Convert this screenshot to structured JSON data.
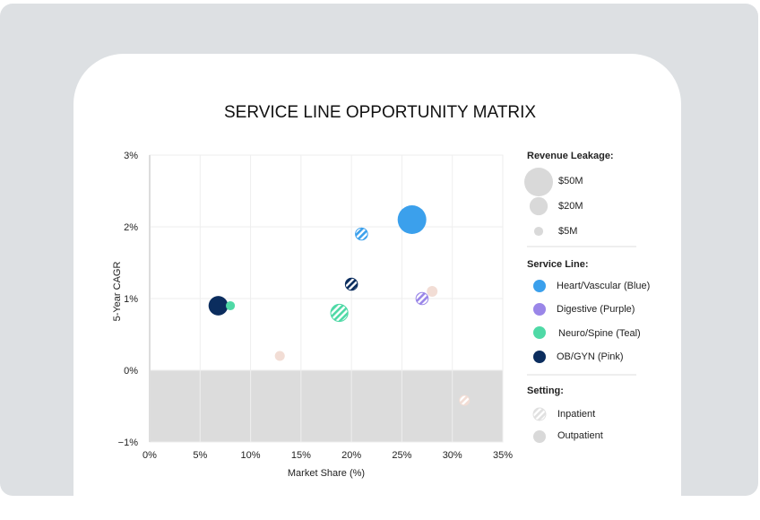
{
  "chart_data": {
    "type": "scatter",
    "title": "SERVICE LINE OPPORTUNITY MATRIX",
    "xlabel": "Market Share (%)",
    "ylabel": "5-Year CAGR",
    "xlim": [
      0,
      35
    ],
    "ylim": [
      -1,
      3
    ],
    "x_ticks": [
      "0%",
      "5%",
      "10%",
      "15%",
      "20%",
      "25%",
      "30%",
      "35%"
    ],
    "y_ticks": [
      "3%",
      "2%",
      "1%",
      "0%",
      "−1%"
    ],
    "grid": true,
    "negative_region_shaded": true,
    "points": [
      {
        "service_line": "Heart/Vascular",
        "setting": "Outpatient",
        "x": 26,
        "y": 2.1,
        "leakage_m": 50
      },
      {
        "service_line": "Heart/Vascular",
        "setting": "Inpatient",
        "x": 21,
        "y": 1.9,
        "leakage_m": 9
      },
      {
        "service_line": "OB/GYN",
        "setting": "Inpatient",
        "x": 20,
        "y": 1.2,
        "leakage_m": 9
      },
      {
        "service_line": "Neuro/Spine",
        "setting": "Inpatient",
        "x": 18.8,
        "y": 0.8,
        "leakage_m": 18
      },
      {
        "service_line": "Digestive",
        "setting": "Inpatient",
        "x": 27,
        "y": 1.0,
        "leakage_m": 9
      },
      {
        "service_line": "Pink",
        "setting": "Outpatient",
        "x": 28,
        "y": 1.1,
        "leakage_m": 7
      },
      {
        "service_line": "OB/GYN",
        "setting": "Outpatient",
        "x": 6.8,
        "y": 0.9,
        "leakage_m": 23
      },
      {
        "service_line": "Neuro/Spine",
        "setting": "Outpatient",
        "x": 8,
        "y": 0.9,
        "leakage_m": 5
      },
      {
        "service_line": "Pink",
        "setting": "Outpatient",
        "x": 12.9,
        "y": 0.2,
        "leakage_m": 6
      },
      {
        "service_line": "Pink",
        "setting": "Inpatient",
        "x": 31.2,
        "y": -0.42,
        "leakage_m": 6
      }
    ],
    "colors": {
      "Heart/Vascular": "#3ba0ec",
      "Digestive": "#9a86e8",
      "Neuro/Spine": "#4fd9a6",
      "OB/GYN": "#0b2d5e",
      "Pink": "#f2ddd5"
    },
    "legend": {
      "size_title": "Revenue Leakage:",
      "sizes": [
        {
          "label": "$50M",
          "value": 50
        },
        {
          "label": "$20M",
          "value": 20
        },
        {
          "label": "$5M",
          "value": 5
        }
      ],
      "color_title": "Service Line:",
      "colors": [
        {
          "label": "Heart/Vascular (Blue)",
          "color": "#3ba0ec"
        },
        {
          "label": "Digestive (Purple)",
          "color": "#9a86e8"
        },
        {
          "label": "Neuro/Spine (Teal)",
          "color": "#4fd9a6"
        },
        {
          "label": "OB/GYN (Pink)",
          "color": "#0b2d5e"
        }
      ],
      "setting_title": "Setting:",
      "settings": [
        {
          "label": "Inpatient"
        },
        {
          "label": "Outpatient"
        }
      ],
      "placement": "right"
    }
  }
}
